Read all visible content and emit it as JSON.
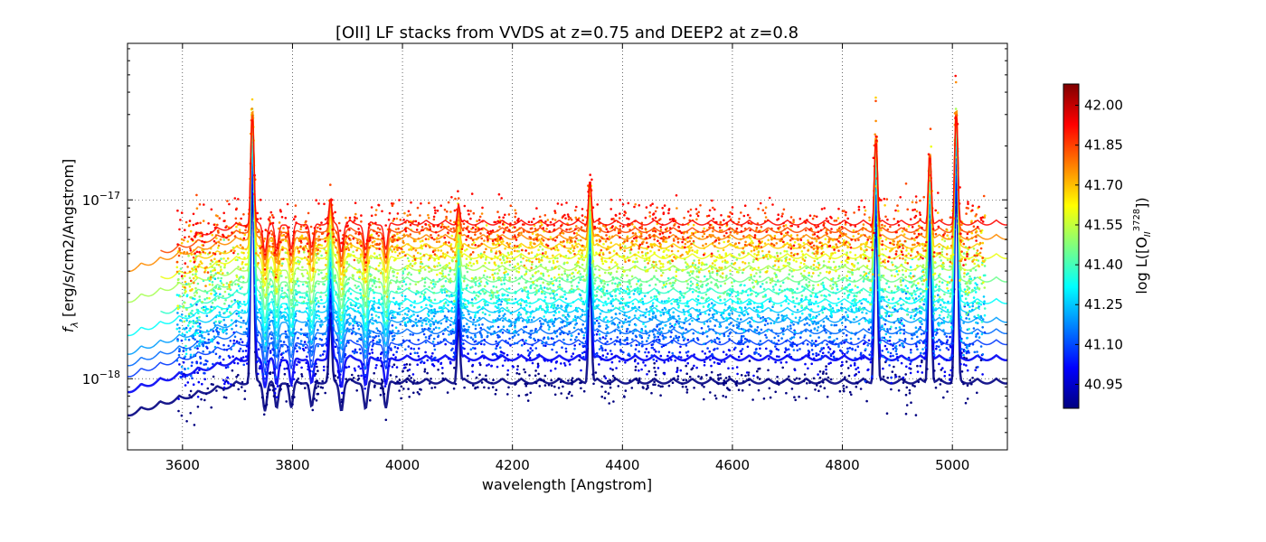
{
  "chart_data": {
    "type": "scatter",
    "title": "[OII] LF stacks from VVDS at z=0.75 and DEEP2 at z=0.8",
    "xlabel": "wavelength [Angstrom]",
    "ylabel": "f_λ [erg/s/cm2/Angstrom]",
    "xlim": [
      3500,
      5100
    ],
    "ylim": [
      4e-19,
      7.5e-17
    ],
    "yscale": "log",
    "grid": true,
    "x_ticks": [
      3600,
      3800,
      4000,
      4200,
      4400,
      4600,
      4800,
      5000
    ],
    "x_tick_labels": [
      "3600",
      "3800",
      "4000",
      "4200",
      "4400",
      "4600",
      "4800",
      "5000"
    ],
    "y_ticks": [
      1e-18,
      1e-17
    ],
    "y_tick_labels": [
      {
        "base": "10",
        "exp": "−18"
      },
      {
        "base": "10",
        "exp": "−17"
      }
    ],
    "emission_lines": [
      3727,
      3869,
      4102,
      4341,
      4861,
      4959,
      5007
    ],
    "absorption_features": [
      3750,
      3771,
      3798,
      3835,
      3889,
      3933,
      3970
    ],
    "series_continuum": [
      {
        "logL": 40.86,
        "continuum": 1e-18
      },
      {
        "logL": 41.0,
        "continuum": 1.35e-18
      },
      {
        "logL": 41.08,
        "continuum": 1.65e-18
      },
      {
        "logL": 41.14,
        "continuum": 1.9e-18
      },
      {
        "logL": 41.2,
        "continuum": 2.2e-18
      },
      {
        "logL": 41.26,
        "continuum": 2.5e-18
      },
      {
        "logL": 41.32,
        "continuum": 2.8e-18
      },
      {
        "logL": 41.38,
        "continuum": 3.2e-18
      },
      {
        "logL": 41.45,
        "continuum": 3.7e-18
      },
      {
        "logL": 41.52,
        "continuum": 4.3e-18
      },
      {
        "logL": 41.6,
        "continuum": 5e-18
      },
      {
        "logL": 41.68,
        "continuum": 5.7e-18
      },
      {
        "logL": 41.76,
        "continuum": 6.4e-18
      },
      {
        "logL": 41.84,
        "continuum": 7e-18
      },
      {
        "logL": 41.92,
        "continuum": 7.7e-18
      }
    ],
    "colorbar": {
      "label": "log L([O",
      "label_sub": "II",
      "label_sup": "3728",
      "label_end": "])",
      "colormap": "jet",
      "range": [
        40.86,
        42.08
      ],
      "ticks": [
        42.0,
        41.85,
        41.7,
        41.55,
        41.4,
        41.25,
        41.1,
        40.95
      ],
      "tick_labels": [
        "42.00",
        "41.85",
        "41.70",
        "41.55",
        "41.40",
        "41.25",
        "41.10",
        "40.95"
      ]
    }
  }
}
